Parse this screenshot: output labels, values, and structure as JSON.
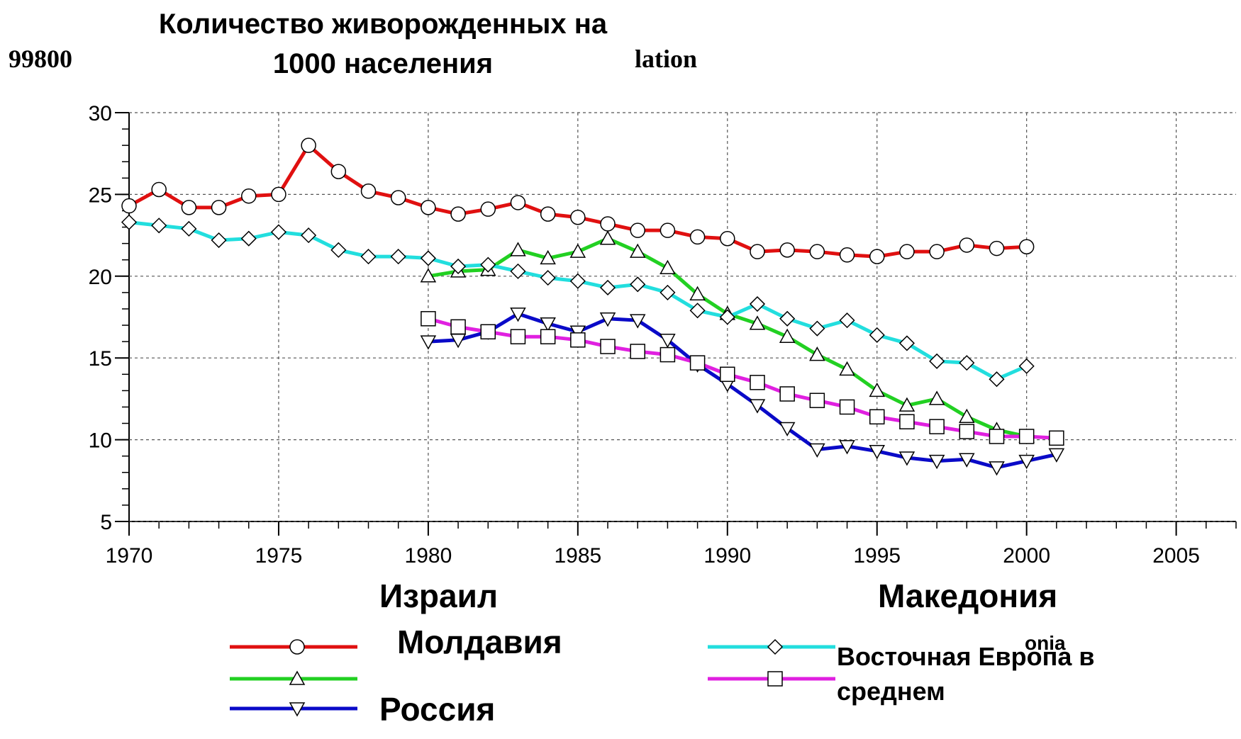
{
  "chart_data": {
    "type": "line",
    "title": "Количество живорожденных на 1000 населения",
    "annotations": [
      "99800",
      "lation",
      "onia"
    ],
    "x": [
      1970,
      1971,
      1972,
      1973,
      1974,
      1975,
      1976,
      1977,
      1978,
      1979,
      1980,
      1981,
      1982,
      1983,
      1984,
      1985,
      1986,
      1987,
      1988,
      1989,
      1990,
      1991,
      1992,
      1993,
      1994,
      1995,
      1996,
      1997,
      1998,
      1999,
      2000,
      2001
    ],
    "series": [
      {
        "name": "Израил",
        "color": "#e01010",
        "marker": "circle",
        "values": [
          24.3,
          25.3,
          24.2,
          24.2,
          24.9,
          25.0,
          28.0,
          26.4,
          25.2,
          24.8,
          24.2,
          23.8,
          24.1,
          24.5,
          23.8,
          23.6,
          23.2,
          22.8,
          22.8,
          22.4,
          22.3,
          21.5,
          21.6,
          21.5,
          21.3,
          21.2,
          21.5,
          21.5,
          21.9,
          21.7,
          21.8,
          null
        ]
      },
      {
        "name": "Молдавия",
        "color": "#22d022",
        "marker": "triangle-up",
        "values": [
          null,
          null,
          null,
          null,
          null,
          null,
          null,
          null,
          null,
          null,
          20.0,
          20.3,
          20.4,
          21.6,
          21.1,
          21.5,
          22.3,
          21.5,
          20.5,
          18.9,
          17.7,
          17.1,
          16.3,
          15.2,
          14.3,
          13.0,
          12.1,
          12.5,
          11.4,
          10.6,
          10.2,
          null
        ]
      },
      {
        "name": "Россия",
        "color": "#0a0ac8",
        "marker": "triangle-down",
        "values": [
          null,
          null,
          null,
          null,
          null,
          null,
          null,
          null,
          null,
          null,
          16.0,
          16.1,
          16.6,
          17.7,
          17.1,
          16.6,
          17.4,
          17.3,
          16.1,
          14.6,
          13.4,
          12.1,
          10.7,
          9.4,
          9.6,
          9.3,
          8.9,
          8.7,
          8.8,
          8.3,
          8.7,
          9.1
        ]
      },
      {
        "name": "Македония",
        "color": "#22dede",
        "marker": "diamond",
        "values": [
          23.3,
          23.1,
          22.9,
          22.2,
          22.3,
          22.7,
          22.5,
          21.6,
          21.2,
          21.2,
          21.1,
          20.6,
          20.7,
          20.3,
          19.9,
          19.7,
          19.3,
          19.5,
          19.0,
          17.9,
          17.5,
          18.3,
          17.4,
          16.8,
          17.3,
          16.4,
          15.9,
          14.8,
          14.7,
          13.7,
          14.5,
          null
        ]
      },
      {
        "name": "Восточная Европа в среднем",
        "color": "#e020e0",
        "marker": "square",
        "values": [
          null,
          null,
          null,
          null,
          null,
          null,
          null,
          null,
          null,
          null,
          17.4,
          16.9,
          16.6,
          16.3,
          16.3,
          16.1,
          15.7,
          15.4,
          15.2,
          14.7,
          14.0,
          13.5,
          12.8,
          12.4,
          12.0,
          11.4,
          11.1,
          10.8,
          10.5,
          10.2,
          10.2,
          10.1
        ]
      }
    ],
    "xlim": [
      1970,
      2007
    ],
    "xticks": [
      1970,
      1975,
      1980,
      1985,
      1990,
      1995,
      2000,
      2005
    ],
    "ylim": [
      5,
      30
    ],
    "yticks": [
      5,
      10,
      15,
      20,
      25,
      30
    ],
    "grid": true
  }
}
